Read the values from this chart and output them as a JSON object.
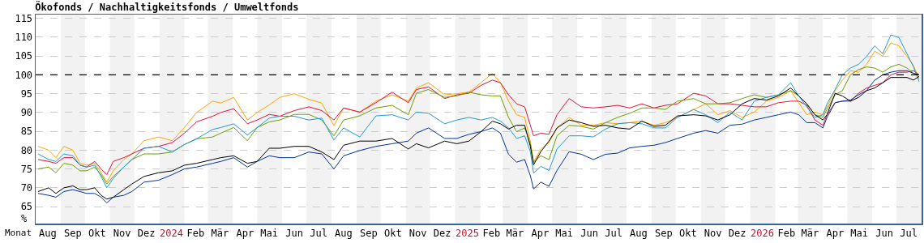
{
  "chart_data": {
    "type": "line",
    "title": "Ökofonds / Nachhaltigkeitsfonds / Umweltfonds",
    "xlabel": "Monat",
    "ylabel": "%",
    "x": [
      "2023-08-04",
      "2023-08-17",
      "2023-08-26",
      "2023-09-05",
      "2023-09-16",
      "2023-09-25",
      "2023-10-03",
      "2023-10-13",
      "2023-10-21",
      "2023-10-28",
      "2023-11-05",
      "2023-11-18",
      "2023-11-28",
      "2023-12-13",
      "2023-12-31",
      "2024-01-17",
      "2024-02-01",
      "2024-02-16",
      "2024-03-07",
      "2024-03-17",
      "2024-04-02",
      "2024-04-19",
      "2024-05-01",
      "2024-05-16",
      "2024-05-29",
      "2024-06-16",
      "2024-07-04",
      "2024-07-20",
      "2024-08-04",
      "2024-08-16",
      "2024-09-05",
      "2024-09-25",
      "2024-10-15",
      "2024-11-04",
      "2024-11-14",
      "2024-11-29",
      "2024-12-19",
      "2025-01-03",
      "2025-01-18",
      "2025-02-02",
      "2025-02-16",
      "2025-02-26",
      "2025-03-08",
      "2025-03-18",
      "2025-03-28",
      "2025-04-04",
      "2025-04-08",
      "2025-04-17",
      "2025-04-27",
      "2025-05-07",
      "2025-05-22",
      "2025-06-06",
      "2025-06-21",
      "2025-07-06",
      "2025-07-21",
      "2025-08-05",
      "2025-08-20",
      "2025-09-04",
      "2025-09-18",
      "2025-10-03",
      "2025-10-23",
      "2025-11-07",
      "2025-11-22",
      "2025-12-07",
      "2025-12-22",
      "2026-01-06",
      "2026-01-21",
      "2026-02-05",
      "2026-02-20",
      "2026-03-02",
      "2026-03-12",
      "2026-03-22",
      "2026-04-01",
      "2026-04-06",
      "2026-04-16",
      "2026-04-25",
      "2026-05-05",
      "2026-05-15",
      "2026-05-25",
      "2026-06-04",
      "2026-06-14",
      "2026-06-24",
      "2026-07-04",
      "2026-07-14",
      "2026-07-22",
      "2026-07-29"
    ],
    "series": [
      {
        "color": "#ffa500",
        "values": [
          81,
          80,
          78,
          81,
          80,
          76.5,
          76,
          76.5,
          74,
          71.5,
          74.5,
          77.5,
          79,
          82.5,
          83.5,
          82.5,
          86,
          90,
          93,
          92.5,
          94,
          88,
          90,
          92,
          94,
          95,
          93.5,
          92.5,
          86.5,
          91.2,
          90.1,
          93,
          94.7,
          93,
          96.5,
          97.9,
          94.7,
          95,
          95.4,
          97.9,
          100.4,
          97.9,
          93,
          89.4,
          88.7,
          82.4,
          76.8,
          80.3,
          82,
          85.9,
          88.7,
          86.6,
          86.6,
          87.3,
          87,
          87.3,
          87.7,
          86.6,
          87.3,
          88.7,
          90.8,
          92.3,
          89.4,
          90.5,
          88.7,
          90.1,
          93,
          94,
          95.8,
          92.6,
          89.4,
          90.1,
          89.4,
          91.5,
          95.8,
          98.6,
          101.1,
          100.7,
          102.8,
          106.3,
          104.9,
          108.5,
          107.7,
          104.9,
          102.5,
          98.9
        ]
      },
      {
        "color": "#dc143c",
        "values": [
          77.5,
          77,
          76.5,
          78,
          78,
          76,
          75.5,
          77,
          75,
          73.5,
          77,
          78,
          79,
          80.5,
          81,
          82,
          84.5,
          87.5,
          89,
          90,
          91,
          87,
          88,
          89.5,
          89,
          90.5,
          91.5,
          90.5,
          88,
          91.2,
          90.1,
          92.6,
          95.4,
          92.6,
          96.1,
          96.8,
          93.7,
          94.7,
          95.1,
          97.2,
          98.6,
          97.9,
          94.7,
          92.3,
          91.5,
          86.6,
          83.8,
          84.5,
          84.2,
          89.4,
          93.7,
          91.5,
          91.2,
          91.5,
          91.9,
          91.2,
          92.3,
          91.2,
          91.9,
          92.3,
          95.1,
          94.4,
          92.3,
          92.3,
          91.9,
          91.5,
          91.5,
          92.6,
          93,
          93,
          91.9,
          88,
          86.6,
          89.4,
          92.6,
          93,
          93,
          95.1,
          96.5,
          97.2,
          97.9,
          100,
          100.7,
          100.7,
          101.1,
          100
        ]
      },
      {
        "color": "#6b9e00",
        "values": [
          75,
          75.5,
          74,
          76.5,
          76,
          74.5,
          74.5,
          75.5,
          73.5,
          71,
          73,
          75.5,
          77.5,
          79,
          79,
          79.5,
          81.5,
          83,
          83.5,
          84.5,
          86,
          82.5,
          86,
          87.5,
          88,
          89.5,
          89.5,
          88,
          83.8,
          88,
          89.1,
          91.2,
          91.9,
          89.4,
          95.1,
          96.1,
          94,
          94.4,
          95.4,
          94.7,
          94.4,
          94.4,
          88.7,
          84.9,
          85.9,
          81.7,
          76.8,
          78.5,
          77.5,
          83.8,
          86.6,
          86.3,
          85.6,
          87.3,
          88.7,
          89.8,
          91.2,
          91.2,
          90.8,
          93,
          93.7,
          92.3,
          92.3,
          92.6,
          93.7,
          94.7,
          94,
          94.7,
          95.8,
          94.4,
          92.3,
          89.4,
          88.7,
          90.8,
          94.7,
          95.8,
          100,
          101.4,
          102.1,
          101.8,
          100.7,
          102.1,
          102.8,
          101.8,
          100.4,
          100
        ]
      },
      {
        "color": "#1e9bd7",
        "values": [
          79,
          77.5,
          77,
          79,
          78.5,
          76,
          75.5,
          76,
          73,
          70,
          72.5,
          75.5,
          77.5,
          80.5,
          81,
          79.5,
          81.5,
          83,
          85.5,
          86,
          87,
          84,
          86,
          88.5,
          89,
          89,
          88,
          88.5,
          82.7,
          85.9,
          83.5,
          89.1,
          89.4,
          88,
          90.1,
          89.8,
          87,
          88,
          88.7,
          88,
          88.7,
          87.7,
          85.9,
          83.1,
          83.8,
          79.6,
          73.9,
          75.7,
          74.6,
          80.3,
          83.8,
          83.8,
          83.5,
          85.6,
          87,
          87.3,
          87,
          85.9,
          85.9,
          88.7,
          90.8,
          89.4,
          87.3,
          90.1,
          88,
          93,
          94,
          94.7,
          97.9,
          94.4,
          91.5,
          88.7,
          89.4,
          92.3,
          96.1,
          100,
          101.8,
          102.8,
          104.9,
          107.7,
          105.6,
          110.6,
          109.9,
          105.6,
          102.1,
          98.2
        ]
      },
      {
        "color": "#0033a0",
        "values": [
          68.5,
          68,
          67.5,
          69,
          69.5,
          69,
          68.5,
          68.5,
          67.5,
          66,
          67.5,
          68,
          69,
          71.5,
          72,
          73.5,
          75,
          75.5,
          76.5,
          77,
          78,
          75.5,
          77,
          78.5,
          78,
          78,
          79.5,
          79,
          75,
          78.5,
          79.9,
          81,
          81.7,
          82.4,
          84.5,
          85.9,
          83.1,
          83.1,
          84.2,
          84.9,
          85.9,
          84.5,
          78.9,
          76.8,
          77.5,
          73.2,
          69.7,
          71.5,
          70.4,
          74.6,
          79.6,
          78.9,
          77.5,
          78.9,
          79.2,
          80.6,
          81,
          81.3,
          82,
          83.1,
          84.5,
          85.2,
          84.5,
          86.6,
          86.9,
          88,
          88.7,
          89.4,
          90.1,
          89.4,
          87.3,
          87.3,
          85.9,
          88.7,
          92.6,
          93,
          93.3,
          94.7,
          95.8,
          98.6,
          100,
          100.7,
          101.1,
          101.1,
          100.4,
          100
        ]
      },
      {
        "color": "#000000",
        "values": [
          69,
          70,
          68.5,
          70,
          70.5,
          69.5,
          69.5,
          70,
          68,
          67,
          67.5,
          69.5,
          71,
          73,
          74,
          74.5,
          76,
          76.5,
          77.5,
          78,
          78.5,
          76.5,
          77,
          80.5,
          80.5,
          81,
          81,
          79.5,
          77.5,
          81.3,
          82.4,
          82.4,
          83.1,
          80.3,
          81.7,
          80.6,
          82.4,
          81.7,
          82.4,
          84.9,
          87.7,
          87,
          85.6,
          86.6,
          86.6,
          81,
          76.1,
          79.6,
          82.4,
          85.9,
          88,
          87.3,
          86.3,
          86.6,
          85.9,
          85.6,
          87.7,
          86.3,
          86.6,
          89.1,
          89.4,
          89.1,
          88,
          89.4,
          92.3,
          93.7,
          93.3,
          94.4,
          96.5,
          94.4,
          92.3,
          89.4,
          88,
          89.4,
          95.1,
          94.4,
          93,
          94,
          95.8,
          96.5,
          97.9,
          99.3,
          99.3,
          99.3,
          98.6,
          99.6
        ]
      }
    ],
    "xlim": [
      "2023-08-01",
      "2026-08-01"
    ],
    "xticks": [
      {
        "value": "2023-08-16",
        "label": "Aug"
      },
      {
        "value": "2023-09-16",
        "label": "Sep"
      },
      {
        "value": "2023-10-16",
        "label": "Okt"
      },
      {
        "value": "2023-11-16",
        "label": "Nov"
      },
      {
        "value": "2023-12-16",
        "label": "Dez"
      },
      {
        "value": "2024-01-16",
        "label": "2024"
      },
      {
        "value": "2024-02-15",
        "label": "Feb"
      },
      {
        "value": "2024-03-16",
        "label": "Mär"
      },
      {
        "value": "2024-04-16",
        "label": "Apr"
      },
      {
        "value": "2024-05-16",
        "label": "Mai"
      },
      {
        "value": "2024-06-16",
        "label": "Jun"
      },
      {
        "value": "2024-07-16",
        "label": "Jul"
      },
      {
        "value": "2024-08-16",
        "label": "Aug"
      },
      {
        "value": "2024-09-16",
        "label": "Sep"
      },
      {
        "value": "2024-10-16",
        "label": "Okt"
      },
      {
        "value": "2024-11-16",
        "label": "Nov"
      },
      {
        "value": "2024-12-16",
        "label": "Dez"
      },
      {
        "value": "2025-01-16",
        "label": "2025"
      },
      {
        "value": "2025-02-15",
        "label": "Feb"
      },
      {
        "value": "2025-03-16",
        "label": "Mär"
      },
      {
        "value": "2025-04-16",
        "label": "Apr"
      },
      {
        "value": "2025-05-16",
        "label": "Mai"
      },
      {
        "value": "2025-06-16",
        "label": "Jun"
      },
      {
        "value": "2025-07-16",
        "label": "Jul"
      },
      {
        "value": "2025-08-16",
        "label": "Aug"
      },
      {
        "value": "2025-09-16",
        "label": "Sep"
      },
      {
        "value": "2025-10-16",
        "label": "Okt"
      },
      {
        "value": "2025-11-16",
        "label": "Nov"
      },
      {
        "value": "2025-12-16",
        "label": "Dez"
      },
      {
        "value": "2026-01-16",
        "label": "2026"
      },
      {
        "value": "2026-02-15",
        "label": "Feb"
      },
      {
        "value": "2026-03-16",
        "label": "Mär"
      },
      {
        "value": "2026-04-16",
        "label": "Apr"
      },
      {
        "value": "2026-05-16",
        "label": "Mai"
      },
      {
        "value": "2026-06-16",
        "label": "Jun"
      },
      {
        "value": "2026-07-16",
        "label": "Jul"
      }
    ],
    "ylim": [
      60.5,
      116
    ],
    "yticks": [
      65,
      70,
      75,
      80,
      85,
      90,
      95,
      100,
      105,
      110,
      115
    ],
    "grid": "y",
    "marker": "none",
    "line_style": "solid",
    "ref_lines": [
      {
        "axis": "y",
        "value": 100,
        "color": "#000000",
        "line_style": "dashed"
      }
    ],
    "bands": [
      {
        "axis": "x",
        "from": "2023-09-01",
        "to": "2023-10-01",
        "color": "#f2f2f2"
      },
      {
        "axis": "x",
        "from": "2023-11-01",
        "to": "2023-12-01",
        "color": "#f2f2f2"
      },
      {
        "axis": "x",
        "from": "2024-01-01",
        "to": "2024-02-01",
        "color": "#f2f2f2"
      },
      {
        "axis": "x",
        "from": "2024-03-01",
        "to": "2024-04-01",
        "color": "#f2f2f2"
      },
      {
        "axis": "x",
        "from": "2024-05-01",
        "to": "2024-06-01",
        "color": "#f2f2f2"
      },
      {
        "axis": "x",
        "from": "2024-07-01",
        "to": "2024-08-01",
        "color": "#f2f2f2"
      },
      {
        "axis": "x",
        "from": "2024-09-01",
        "to": "2024-10-01",
        "color": "#f2f2f2"
      },
      {
        "axis": "x",
        "from": "2024-11-01",
        "to": "2024-12-01",
        "color": "#f2f2f2"
      },
      {
        "axis": "x",
        "from": "2025-01-01",
        "to": "2025-02-01",
        "color": "#f2f2f2"
      },
      {
        "axis": "x",
        "from": "2025-03-01",
        "to": "2025-04-01",
        "color": "#f2f2f2"
      },
      {
        "axis": "x",
        "from": "2025-05-01",
        "to": "2025-06-01",
        "color": "#f2f2f2"
      },
      {
        "axis": "x",
        "from": "2025-07-01",
        "to": "2025-08-01",
        "color": "#f2f2f2"
      },
      {
        "axis": "x",
        "from": "2025-09-01",
        "to": "2025-10-01",
        "color": "#f2f2f2"
      },
      {
        "axis": "x",
        "from": "2025-11-01",
        "to": "2025-12-01",
        "color": "#f2f2f2"
      },
      {
        "axis": "x",
        "from": "2026-01-01",
        "to": "2026-02-01",
        "color": "#f2f2f2"
      },
      {
        "axis": "x",
        "from": "2026-03-01",
        "to": "2026-04-01",
        "color": "#f2f2f2"
      },
      {
        "axis": "x",
        "from": "2026-05-01",
        "to": "2026-06-01",
        "color": "#f2f2f2"
      },
      {
        "axis": "x",
        "from": "2026-07-01",
        "to": "2026-08-01",
        "color": "#f2f2f2"
      }
    ]
  }
}
